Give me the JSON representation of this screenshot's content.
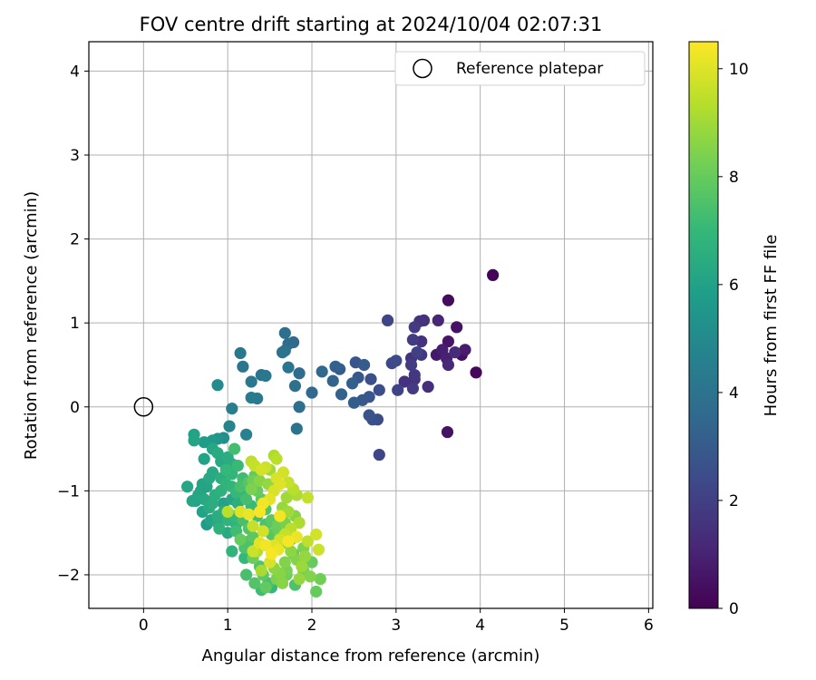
{
  "chart_data": {
    "type": "scatter",
    "title": "FOV centre drift starting at 2024/10/04 02:07:31",
    "xlabel": "Angular distance from reference (arcmin)",
    "ylabel": "Rotation from reference (arcmin)",
    "xlim": [
      -0.65,
      6.05
    ],
    "ylim": [
      -2.4,
      4.35
    ],
    "xticks": [
      "0",
      "1",
      "2",
      "3",
      "4",
      "5",
      "6"
    ],
    "yticks": [
      "−2",
      "−1",
      "0",
      "1",
      "2",
      "3",
      "4"
    ],
    "grid": true,
    "legend": {
      "position": "top-right",
      "label": "Reference platepar"
    },
    "reference_point": {
      "x": 0,
      "y": 0
    },
    "colorbar": {
      "label": "Hours from first FF file",
      "min": 0,
      "max": 10.5,
      "ticks": [
        "0",
        "2",
        "4",
        "6",
        "8",
        "10"
      ],
      "colormap": "viridis",
      "stops": [
        "#440154",
        "#482878",
        "#3e4989",
        "#31688e",
        "#26828e",
        "#1f9e89",
        "#35b779",
        "#6ece58",
        "#b5de2b",
        "#fde725"
      ]
    },
    "points": [
      [
        4.15,
        1.57,
        0.1
      ],
      [
        3.62,
        1.27,
        0.3
      ],
      [
        3.95,
        0.41,
        0.2
      ],
      [
        3.78,
        0.62,
        0.4
      ],
      [
        3.72,
        0.95,
        0.5
      ],
      [
        3.62,
        0.78,
        0.6
      ],
      [
        3.61,
        -0.3,
        0.5
      ],
      [
        3.82,
        0.68,
        0.8
      ],
      [
        3.55,
        0.68,
        0.9
      ],
      [
        3.6,
        0.58,
        1.0
      ],
      [
        3.48,
        0.62,
        0.7
      ],
      [
        3.5,
        1.03,
        1.1
      ],
      [
        3.62,
        0.5,
        1.2
      ],
      [
        3.7,
        0.65,
        1.3
      ],
      [
        3.38,
        0.24,
        1.4
      ],
      [
        3.3,
        0.78,
        1.5
      ],
      [
        3.28,
        1.02,
        1.6
      ],
      [
        3.3,
        0.62,
        1.7
      ],
      [
        3.22,
        0.95,
        1.8
      ],
      [
        3.2,
        0.8,
        1.9
      ],
      [
        3.25,
        0.65,
        2.0
      ],
      [
        3.18,
        0.5,
        1.9
      ],
      [
        3.22,
        0.38,
        1.7
      ],
      [
        3.2,
        0.22,
        1.8
      ],
      [
        3.22,
        0.33,
        1.6
      ],
      [
        3.1,
        0.3,
        1.5
      ],
      [
        3.33,
        1.03,
        1.4
      ],
      [
        3.18,
        0.58,
        1.6
      ],
      [
        3.02,
        0.2,
        2.1
      ],
      [
        2.9,
        1.03,
        2.2
      ],
      [
        2.95,
        0.52,
        2.3
      ],
      [
        3.0,
        0.55,
        2.4
      ],
      [
        2.8,
        -0.57,
        2.2
      ],
      [
        2.8,
        0.2,
        2.5
      ],
      [
        2.72,
        -0.15,
        2.6
      ],
      [
        2.78,
        -0.15,
        2.4
      ],
      [
        2.68,
        -0.1,
        2.7
      ],
      [
        2.68,
        0.12,
        2.8
      ],
      [
        2.6,
        0.08,
        2.9
      ],
      [
        2.62,
        0.5,
        3.0
      ],
      [
        2.5,
        0.05,
        3.1
      ],
      [
        2.52,
        0.53,
        2.8
      ],
      [
        2.55,
        0.35,
        2.9
      ],
      [
        2.7,
        0.33,
        2.6
      ],
      [
        2.48,
        0.28,
        3.2
      ],
      [
        2.35,
        0.15,
        3.3
      ],
      [
        2.33,
        0.45,
        3.1
      ],
      [
        2.28,
        0.48,
        3.2
      ],
      [
        2.25,
        0.31,
        3.4
      ],
      [
        2.12,
        0.42,
        3.5
      ],
      [
        2.0,
        0.17,
        3.6
      ],
      [
        1.85,
        0.4,
        3.7
      ],
      [
        1.85,
        0.0,
        3.8
      ],
      [
        1.82,
        -0.26,
        4.0
      ],
      [
        1.8,
        0.25,
        3.9
      ],
      [
        1.78,
        0.77,
        3.6
      ],
      [
        1.72,
        0.75,
        3.7
      ],
      [
        1.68,
        0.88,
        3.8
      ],
      [
        1.65,
        0.65,
        3.9
      ],
      [
        1.68,
        0.67,
        4.0
      ],
      [
        1.72,
        0.47,
        4.1
      ],
      [
        1.45,
        0.37,
        4.2
      ],
      [
        1.4,
        0.38,
        4.0
      ],
      [
        1.35,
        0.1,
        4.3
      ],
      [
        1.28,
        0.11,
        4.4
      ],
      [
        1.28,
        0.3,
        4.2
      ],
      [
        1.18,
        0.48,
        4.1
      ],
      [
        1.15,
        0.64,
        4.2
      ],
      [
        1.05,
        -0.02,
        4.5
      ],
      [
        1.02,
        -0.23,
        4.8
      ],
      [
        0.88,
        0.26,
        5.0
      ],
      [
        1.22,
        -0.33,
        4.6
      ],
      [
        0.95,
        -0.37,
        5.2
      ],
      [
        0.88,
        -0.38,
        5.4
      ],
      [
        0.82,
        -0.4,
        5.6
      ],
      [
        0.72,
        -0.42,
        5.8
      ],
      [
        0.6,
        -0.33,
        6.0
      ],
      [
        0.6,
        -0.4,
        6.1
      ],
      [
        0.52,
        -0.95,
        6.2
      ],
      [
        0.72,
        -0.62,
        6.0
      ],
      [
        0.82,
        -0.5,
        6.2
      ],
      [
        0.88,
        -0.55,
        6.4
      ],
      [
        0.92,
        -0.65,
        6.3
      ],
      [
        1.0,
        -0.6,
        6.5
      ],
      [
        1.02,
        -0.78,
        6.6
      ],
      [
        1.05,
        -0.68,
        6.5
      ],
      [
        0.78,
        -0.85,
        6.3
      ],
      [
        0.7,
        -0.92,
        6.1
      ],
      [
        0.65,
        -1.05,
        6.2
      ],
      [
        0.62,
        -1.12,
        6.0
      ],
      [
        0.72,
        -1.1,
        6.3
      ],
      [
        0.78,
        -1.2,
        6.4
      ],
      [
        0.82,
        -1.15,
        6.5
      ],
      [
        0.85,
        -1.05,
        6.6
      ],
      [
        0.92,
        -1.0,
        6.7
      ],
      [
        0.98,
        -0.92,
        6.8
      ],
      [
        1.05,
        -0.95,
        6.9
      ],
      [
        1.1,
        -1.02,
        7.0
      ],
      [
        0.88,
        -1.3,
        6.5
      ],
      [
        0.95,
        -1.25,
        6.6
      ],
      [
        0.88,
        -1.38,
        6.4
      ],
      [
        0.9,
        -1.45,
        6.7
      ],
      [
        1.0,
        -1.35,
        6.8
      ],
      [
        1.08,
        -1.3,
        7.0
      ],
      [
        1.15,
        -1.25,
        7.2
      ],
      [
        1.22,
        -1.1,
        7.3
      ],
      [
        1.18,
        -1.35,
        7.4
      ],
      [
        1.25,
        -1.45,
        7.6
      ],
      [
        1.3,
        -1.55,
        7.8
      ],
      [
        1.15,
        -1.58,
        8.0
      ],
      [
        1.1,
        -1.48,
        7.2
      ],
      [
        1.05,
        -1.72,
        6.8
      ],
      [
        1.2,
        -1.68,
        7.5
      ],
      [
        1.3,
        -1.8,
        8.1
      ],
      [
        1.38,
        -1.9,
        7.6
      ],
      [
        1.42,
        -2.0,
        7.8
      ],
      [
        1.48,
        -2.1,
        7.4
      ],
      [
        1.4,
        -2.18,
        7.2
      ],
      [
        1.52,
        -2.15,
        7.0
      ],
      [
        1.58,
        -2.05,
        8.4
      ],
      [
        1.65,
        -2.1,
        8.6
      ],
      [
        1.7,
        -2.0,
        8.2
      ],
      [
        1.8,
        -2.12,
        7.5
      ],
      [
        1.85,
        -2.05,
        8.8
      ],
      [
        1.9,
        -1.95,
        8.3
      ],
      [
        1.82,
        -1.82,
        8.5
      ],
      [
        1.75,
        -1.72,
        8.7
      ],
      [
        1.68,
        -1.62,
        8.9
      ],
      [
        1.62,
        -1.55,
        8.2
      ],
      [
        1.58,
        -1.45,
        8.0
      ],
      [
        1.52,
        -1.35,
        7.8
      ],
      [
        1.45,
        -1.22,
        7.6
      ],
      [
        1.4,
        -1.1,
        7.8
      ],
      [
        1.35,
        -1.0,
        8.0
      ],
      [
        1.3,
        -0.88,
        8.2
      ],
      [
        1.28,
        -0.98,
        8.4
      ],
      [
        1.38,
        -0.88,
        8.6
      ],
      [
        1.48,
        -0.92,
        8.8
      ],
      [
        1.5,
        -0.75,
        9.0
      ],
      [
        1.55,
        -0.58,
        9.2
      ],
      [
        1.58,
        -0.62,
        9.4
      ],
      [
        1.28,
        -0.65,
        9.5
      ],
      [
        1.32,
        -0.7,
        9.6
      ],
      [
        1.4,
        -0.75,
        9.8
      ],
      [
        1.45,
        -0.72,
        9.7
      ],
      [
        1.58,
        -0.85,
        9.9
      ],
      [
        1.62,
        -0.92,
        10.0
      ],
      [
        1.66,
        -0.78,
        9.8
      ],
      [
        1.72,
        -0.9,
        9.6
      ],
      [
        1.78,
        -0.98,
        9.4
      ],
      [
        1.82,
        -1.05,
        9.2
      ],
      [
        1.7,
        -1.08,
        9.0
      ],
      [
        1.65,
        -1.2,
        8.8
      ],
      [
        1.72,
        -1.25,
        9.0
      ],
      [
        1.8,
        -1.3,
        8.6
      ],
      [
        1.85,
        -1.38,
        9.2
      ],
      [
        1.75,
        -1.45,
        9.4
      ],
      [
        1.68,
        -1.52,
        9.6
      ],
      [
        1.62,
        -1.58,
        9.8
      ],
      [
        1.55,
        -1.65,
        10.0
      ],
      [
        1.6,
        -1.7,
        10.2
      ],
      [
        1.45,
        -1.65,
        10.3
      ],
      [
        1.52,
        -1.75,
        10.4
      ],
      [
        1.38,
        -1.62,
        10.1
      ],
      [
        1.42,
        -1.48,
        9.8
      ],
      [
        1.3,
        -1.42,
        9.6
      ],
      [
        1.25,
        -1.28,
        10.2
      ],
      [
        1.15,
        -1.25,
        10.0
      ],
      [
        1.0,
        -1.25,
        9.4
      ],
      [
        1.62,
        -1.3,
        10.3
      ],
      [
        1.72,
        -1.6,
        10.4
      ],
      [
        1.82,
        -1.55,
        10.2
      ],
      [
        1.95,
        -1.6,
        9.5
      ],
      [
        1.68,
        -1.85,
        8.5
      ],
      [
        1.55,
        -1.92,
        8.7
      ],
      [
        1.35,
        -1.72,
        9.3
      ],
      [
        1.25,
        -1.6,
        7.5
      ],
      [
        1.2,
        -1.8,
        7.0
      ],
      [
        1.1,
        -1.4,
        6.8
      ],
      [
        1.0,
        -1.5,
        6.4
      ],
      [
        0.95,
        -1.15,
        6.0
      ],
      [
        1.05,
        -1.1,
        6.2
      ],
      [
        1.12,
        -1.15,
        6.6
      ],
      [
        1.2,
        -1.05,
        6.9
      ],
      [
        1.28,
        -1.18,
        7.1
      ],
      [
        1.35,
        -1.3,
        7.3
      ],
      [
        1.45,
        -1.4,
        7.5
      ],
      [
        1.52,
        -1.52,
        7.7
      ],
      [
        1.6,
        -1.4,
        8.1
      ],
      [
        1.68,
        -1.38,
        8.3
      ],
      [
        1.75,
        -1.58,
        8.0
      ],
      [
        1.78,
        -1.75,
        7.9
      ],
      [
        1.9,
        -1.68,
        8.4
      ],
      [
        1.95,
        -1.08,
        9.6
      ],
      [
        2.05,
        -1.52,
        9.8
      ],
      [
        2.08,
        -1.7,
        9.7
      ],
      [
        2.05,
        -2.2,
        8.0
      ],
      [
        2.1,
        -2.05,
        8.2
      ],
      [
        1.98,
        -2.02,
        8.5
      ],
      [
        1.88,
        -1.9,
        8.9
      ],
      [
        2.0,
        -1.85,
        8.0
      ],
      [
        1.92,
        -1.78,
        8.8
      ],
      [
        1.22,
        -2.0,
        7.4
      ],
      [
        1.32,
        -2.1,
        7.6
      ],
      [
        1.45,
        -2.15,
        7.9
      ],
      [
        1.25,
        -0.9,
        7.7
      ],
      [
        1.32,
        -0.82,
        7.9
      ],
      [
        1.15,
        -0.95,
        7.4
      ],
      [
        1.18,
        -0.85,
        7.2
      ],
      [
        1.05,
        -0.8,
        6.9
      ],
      [
        1.12,
        -0.7,
        7.1
      ],
      [
        1.08,
        -0.5,
        7.3
      ],
      [
        0.98,
        -0.75,
        7.0
      ],
      [
        0.92,
        -0.85,
        6.6
      ],
      [
        0.82,
        -0.78,
        6.3
      ],
      [
        0.75,
        -0.95,
        6.1
      ],
      [
        0.68,
        -1.0,
        5.9
      ],
      [
        0.7,
        -1.25,
        6.0
      ],
      [
        0.75,
        -1.4,
        5.8
      ],
      [
        0.8,
        -1.35,
        6.1
      ],
      [
        0.58,
        -1.12,
        6.2
      ],
      [
        1.55,
        -1.0,
        9.9
      ],
      [
        1.5,
        -1.1,
        10.1
      ],
      [
        1.42,
        -1.15,
        10.3
      ],
      [
        1.38,
        -1.25,
        10.4
      ],
      [
        1.3,
        -1.72,
        9.7
      ],
      [
        1.5,
        -1.85,
        9.9
      ],
      [
        1.4,
        -1.95,
        9.1
      ],
      [
        1.7,
        -1.95,
        8.3
      ],
      [
        1.62,
        -1.98,
        8.6
      ]
    ]
  }
}
